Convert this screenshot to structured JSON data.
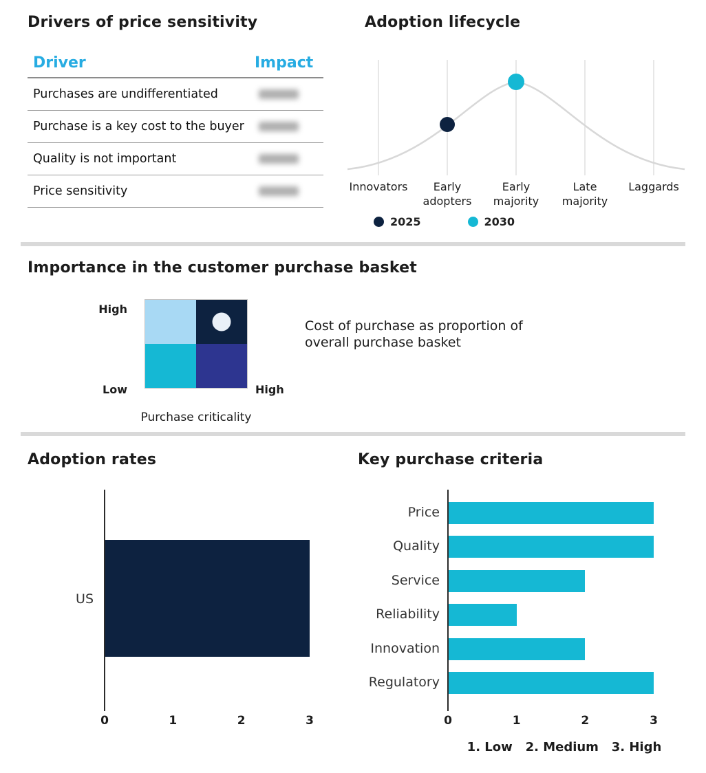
{
  "colors": {
    "navy": "#0d2240",
    "cyan": "#15b8d4",
    "header_cyan": "#27ace2",
    "light_blue": "#a8d9f4",
    "indigo": "#2d3590",
    "marker_white": "#e9f0f8",
    "curve_gray": "#d8d8d8",
    "gridline_gray": "#cfcfcf",
    "divider_gray": "#d9d9d9"
  },
  "chart_data": [
    {
      "id": "drivers-of-price-sensitivity",
      "type": "table",
      "title": "Drivers of price sensitivity",
      "columns": [
        "Driver",
        "Impact"
      ],
      "drivers": [
        "Purchases are undifferentiated",
        "Purchase is a key cost to the buyer",
        "Quality is not important",
        "Price sensitivity"
      ],
      "impact_values_note": "impact cells are blurred / illegible in the screenshot"
    },
    {
      "id": "adoption-lifecycle",
      "type": "line",
      "title": "Adoption lifecycle",
      "categories": [
        "Innovators",
        "Early adopters",
        "Early majority",
        "Late majority",
        "Laggards"
      ],
      "curve": "bell-shaped adoption curve peaking at Early majority",
      "grid": "vertical gridline at each category",
      "points": [
        {
          "series": "2025",
          "category": "Early adopters",
          "category_index": 1,
          "color": "#0d2240"
        },
        {
          "series": "2030",
          "category": "Early majority",
          "category_index": 2,
          "color": "#15b8d4"
        }
      ],
      "legend": [
        {
          "label": "2025",
          "color": "#0d2240"
        },
        {
          "label": "2030",
          "color": "#15b8d4"
        }
      ],
      "legend_position": "bottom"
    },
    {
      "id": "purchase-basket-matrix",
      "type": "heatmap",
      "title": "Importance in the customer purchase basket",
      "x_axis_label": "Purchase criticality",
      "y_axis_high_label": "High",
      "y_axis_low_label": "Low",
      "x_axis_high_label": "High",
      "annotation": "Cost of purchase as proportion of overall purchase basket",
      "quadrants": [
        {
          "position": "top-left",
          "color": "#a8d9f4",
          "marker": null
        },
        {
          "position": "top-right",
          "color": "#0d2240",
          "marker": "circle"
        },
        {
          "position": "bottom-left",
          "color": "#15b8d4",
          "marker": null
        },
        {
          "position": "bottom-right",
          "color": "#2d3590",
          "marker": null
        }
      ]
    },
    {
      "id": "adoption-rates",
      "type": "bar",
      "orientation": "horizontal",
      "title": "Adoption rates",
      "categories": [
        "US"
      ],
      "values": [
        3
      ],
      "xlim": [
        0,
        3
      ],
      "xticks": [
        "0",
        "1",
        "2",
        "3"
      ],
      "bar_color": "#0d2240"
    },
    {
      "id": "key-purchase-criteria",
      "type": "bar",
      "orientation": "horizontal",
      "title": "Key purchase criteria",
      "categories": [
        "Price",
        "Quality",
        "Service",
        "Reliability",
        "Innovation",
        "Regulatory"
      ],
      "values": [
        3,
        3,
        2,
        1,
        2,
        3
      ],
      "xlim": [
        0,
        3
      ],
      "xticks": [
        "0",
        "1",
        "2",
        "3"
      ],
      "bar_color": "#15b8d4",
      "scale_note": "1. Low   2. Medium   3. High"
    }
  ]
}
